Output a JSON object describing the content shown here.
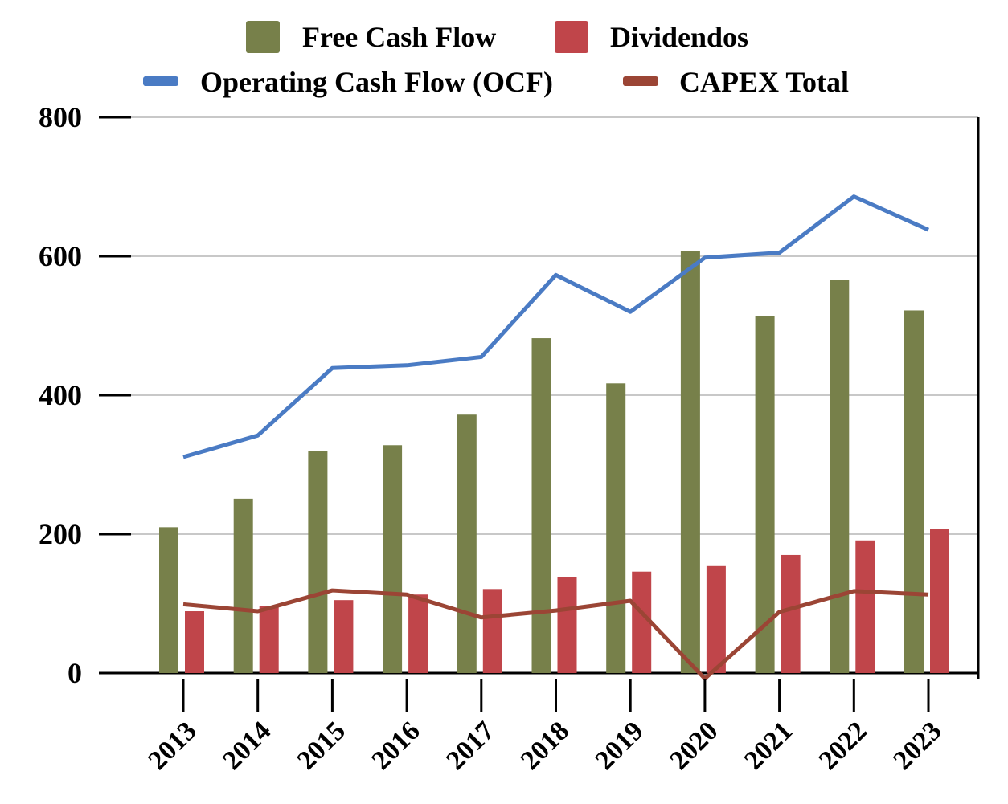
{
  "chart_data": {
    "type": "bar",
    "title": "",
    "xlabel": "",
    "ylabel": "",
    "ylim": [
      0,
      800
    ],
    "yticks": [
      0,
      200,
      400,
      600,
      800
    ],
    "grid": true,
    "legend_placement": "top",
    "categories": [
      "2013",
      "2014",
      "2015",
      "2016",
      "2017",
      "2018",
      "2019",
      "2020",
      "2021",
      "2022",
      "2023"
    ],
    "series": [
      {
        "name": "Free Cash Flow",
        "kind": "bar",
        "color": "#77804a",
        "values": [
          210,
          251,
          320,
          328,
          372,
          482,
          417,
          607,
          514,
          566,
          522
        ]
      },
      {
        "name": "Dividendos",
        "kind": "bar",
        "color": "#c0454a",
        "values": [
          89,
          97,
          105,
          113,
          121,
          138,
          146,
          154,
          170,
          191,
          207
        ]
      },
      {
        "name": "Operating Cash Flow (OCF)",
        "kind": "line",
        "color": "#4a7bc4",
        "values": [
          311,
          342,
          439,
          443,
          455,
          573,
          520,
          598,
          605,
          686,
          638
        ]
      },
      {
        "name": "CAPEX Total",
        "kind": "line",
        "color": "#9b4535",
        "values": [
          99,
          89,
          119,
          113,
          80,
          90,
          104,
          -8,
          88,
          118,
          113
        ]
      }
    ]
  }
}
